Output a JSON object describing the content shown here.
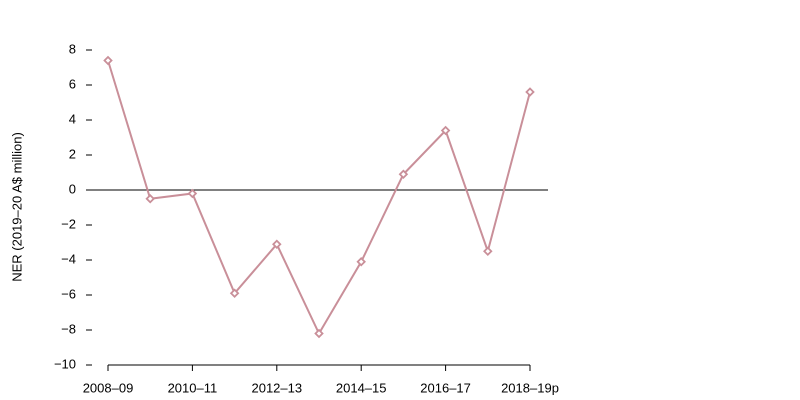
{
  "chart_data": {
    "type": "line",
    "y_label": "NER (2019–20 A$ million)",
    "categories": [
      "2008–09",
      null,
      "2010–11",
      null,
      "2012–13",
      null,
      "2014–15",
      null,
      "2016–17",
      null,
      "2018–19p"
    ],
    "series": [
      {
        "name": "NER",
        "color": "#c98f99",
        "values": [
          7.4,
          -0.5,
          -0.2,
          -5.9,
          -3.1,
          -8.2,
          -4.1,
          0.9,
          3.4,
          -3.5,
          5.6
        ]
      }
    ],
    "ylim": [
      -10,
      8
    ],
    "yticks": [
      {
        "value": -10,
        "label": "−10"
      },
      {
        "value": -8,
        "label": "−8"
      },
      {
        "value": -6,
        "label": "−6"
      },
      {
        "value": -4,
        "label": "−4"
      },
      {
        "value": -2,
        "label": "−2"
      },
      0,
      2,
      4,
      6,
      8
    ],
    "zero_line": true,
    "grid": false
  }
}
